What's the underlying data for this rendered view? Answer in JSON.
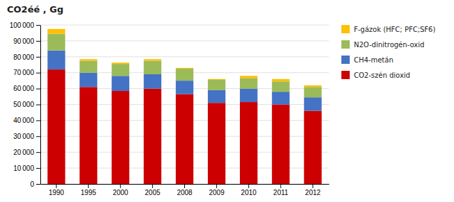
{
  "chart_data": {
    "type": "bar",
    "stacked": true,
    "title": "CO2éé , Gg",
    "categories": [
      "1990",
      "1995",
      "2000",
      "2005",
      "2008",
      "2009",
      "2010",
      "2011",
      "2012"
    ],
    "series": [
      {
        "name": "CO2-szén dioxid",
        "color": "#cc0000",
        "values": [
          72000,
          61000,
          58500,
          60000,
          56500,
          51000,
          51500,
          50000,
          46000
        ]
      },
      {
        "name": "CH4-metán",
        "color": "#4472c4",
        "values": [
          12000,
          9000,
          9500,
          9000,
          8500,
          8000,
          8500,
          8000,
          8500
        ]
      },
      {
        "name": "N2O-dinitrogén-oxid",
        "color": "#9bbb59",
        "values": [
          10500,
          7500,
          7500,
          8500,
          7500,
          6500,
          6500,
          6500,
          6500
        ]
      },
      {
        "name": "F-gázok (HFC; PFC;SF6)",
        "color": "#ffc000",
        "values": [
          3000,
          1000,
          800,
          1000,
          500,
          500,
          1500,
          1500,
          1000
        ]
      }
    ],
    "ylim": [
      0,
      100000
    ],
    "yticks": [
      0,
      {
        "value": 10000,
        "label": "10 000"
      },
      {
        "value": 20000,
        "label": "20 000"
      },
      {
        "value": 30000,
        "label": "30 000"
      },
      {
        "value": 40000,
        "label": "40 000"
      },
      {
        "value": 50000,
        "label": "50 000"
      },
      {
        "value": 60000,
        "label": "60 000"
      },
      {
        "value": 70000,
        "label": "70 000"
      },
      {
        "value": 80000,
        "label": "80 000"
      },
      {
        "value": 90000,
        "label": "90 000"
      },
      {
        "value": 100000,
        "label": "100 000"
      }
    ],
    "grid": true,
    "legend": "right"
  }
}
